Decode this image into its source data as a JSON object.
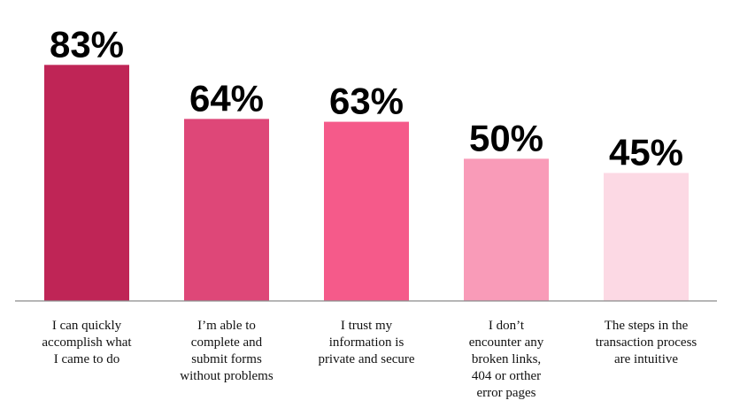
{
  "chart_data": {
    "type": "bar",
    "categories": [
      [
        "I can quickly",
        "accomplish what",
        "I came to do"
      ],
      [
        "I’m able to",
        "complete and",
        "submit forms",
        "without problems"
      ],
      [
        "I trust my",
        "information is",
        "private and secure"
      ],
      [
        "I don’t",
        "encounter any",
        "broken links,",
        "404 or orther",
        "error pages"
      ],
      [
        "The steps in the",
        "transaction process",
        "are intuitive"
      ]
    ],
    "values": [
      83,
      64,
      63,
      50,
      45
    ],
    "value_labels": [
      "83%",
      "64%",
      "63%",
      "50%",
      "45%"
    ],
    "bar_colors": [
      "#bf2556",
      "#de4778",
      "#f55a8a",
      "#f99bb8",
      "#fcd9e4"
    ],
    "ylim": [
      0,
      100
    ],
    "title": "",
    "xlabel": "",
    "ylabel": "",
    "grid": false,
    "legend": "none"
  }
}
